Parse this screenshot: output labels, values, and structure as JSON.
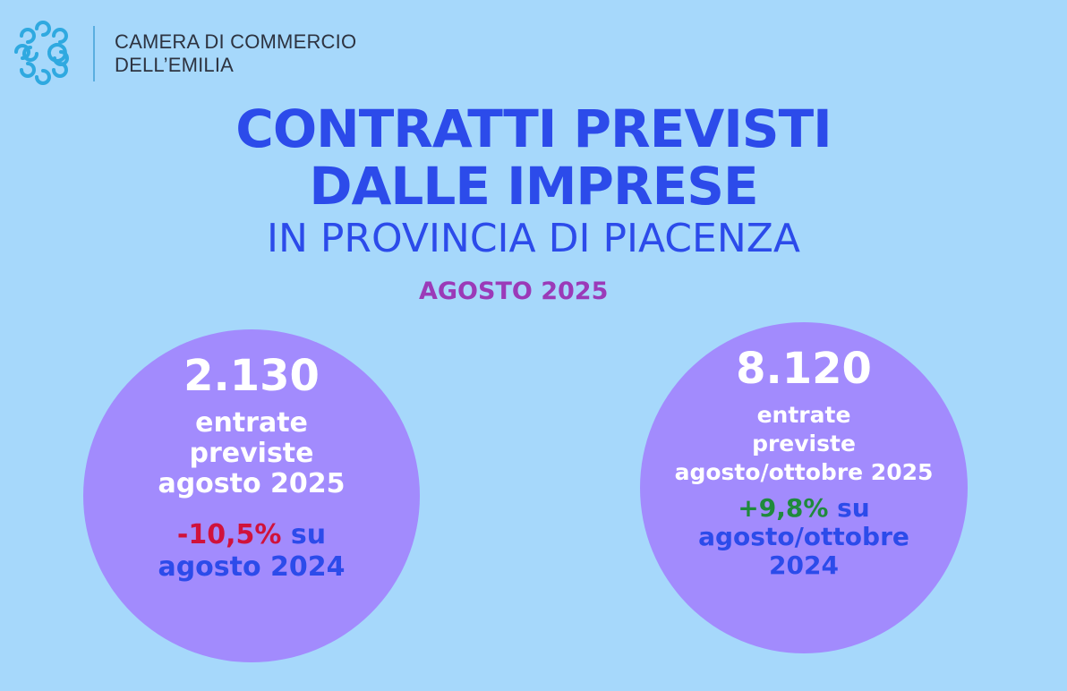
{
  "header": {
    "logo_icon": "camera-commercio-logo-icon",
    "org_line1": "CAMERA DI COMMERCIO",
    "org_line2": "DELL’EMILIA"
  },
  "title": {
    "line1": "CONTRATTI PREVISTI",
    "line2": "DALLE IMPRESE",
    "subtitle": "IN PROVINCIA DI PIACENZA",
    "month": "AGOSTO 2025"
  },
  "stats": [
    {
      "value": "2.130",
      "desc_line1": "entrate",
      "desc_line2": "previste",
      "desc_line3": "agosto 2025",
      "change": "-10,5%",
      "change_suffix": " su",
      "compare_line2": "agosto 2024",
      "compare_line3": ""
    },
    {
      "value": "8.120",
      "desc_line1": "entrate",
      "desc_line2": "previste",
      "desc_line3": "agosto/ottobre 2025",
      "change": "+9,8%",
      "change_suffix": " su",
      "compare_line2": "agosto/ottobre",
      "compare_line3": "2024"
    }
  ],
  "colors": {
    "background": "#a6d8fb",
    "title_blue": "#2c4bea",
    "month_purple": "#9b3ab8",
    "circle": "#a28bfd",
    "negative": "#d0123b",
    "positive": "#1f8a3c",
    "logo": "#2fa9e0"
  }
}
